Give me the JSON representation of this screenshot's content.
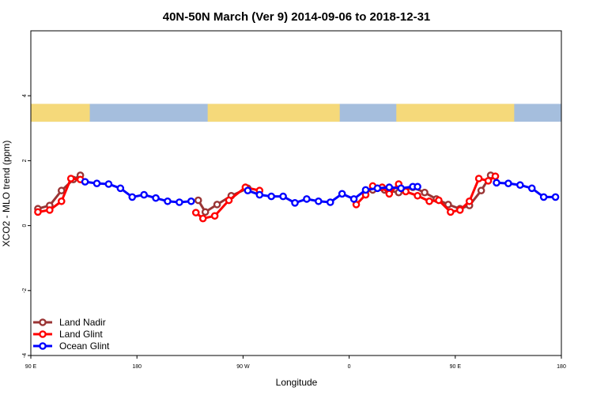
{
  "chart_data": {
    "type": "line",
    "title": "40N-50N March (Ver 9)   2014-09-06 to 2018-12-31",
    "xlabel": "Longitude",
    "ylabel": "XCO2 - MLO trend (ppm)",
    "xlim": [
      90,
      540
    ],
    "ylim": [
      -4,
      6
    ],
    "x_ticks": [
      {
        "value": 90,
        "label": "90 E"
      },
      {
        "value": 180,
        "label": "180"
      },
      {
        "value": 270,
        "label": "90 W"
      },
      {
        "value": 360,
        "label": "0"
      },
      {
        "value": 450,
        "label": "90 E"
      },
      {
        "value": 540,
        "label": "180"
      }
    ],
    "y_ticks": [
      {
        "value": -4,
        "label": "-4"
      },
      {
        "value": -2,
        "label": "-2"
      },
      {
        "value": 0,
        "label": "0"
      },
      {
        "value": 2,
        "label": "2"
      },
      {
        "value": 4,
        "label": "4"
      }
    ],
    "legend_position": "bottom-left",
    "map_strip": {
      "y_range": [
        3.2,
        3.75
      ],
      "ocean_color": "#a5bedd",
      "land_color": "#f5d97a",
      "land_segments": [
        [
          90,
          140
        ],
        [
          240,
          352
        ],
        [
          400,
          500
        ]
      ]
    },
    "series": [
      {
        "name": "Land Nadir",
        "color": "#9a3535",
        "x": [
          96,
          106,
          116,
          126,
          132,
          232,
          238,
          248,
          260,
          274,
          380,
          390,
          402,
          414,
          424,
          434,
          444,
          454,
          462,
          472,
          480
        ],
        "y": [
          0.52,
          0.62,
          1.08,
          1.42,
          1.55,
          0.78,
          0.42,
          0.65,
          0.92,
          1.15,
          1.1,
          1.1,
          1.02,
          1.18,
          1.02,
          0.82,
          0.65,
          0.52,
          0.62,
          1.08,
          1.55
        ]
      },
      {
        "name": "Land Glint",
        "color": "#ff0000",
        "x": [
          96,
          106,
          116,
          124,
          132,
          230,
          236,
          246,
          258,
          272,
          284,
          366,
          374,
          380,
          388,
          394,
          402,
          408,
          418,
          428,
          436,
          446,
          454,
          462,
          470,
          478,
          484
        ],
        "y": [
          0.42,
          0.48,
          0.75,
          1.45,
          1.42,
          0.4,
          0.22,
          0.3,
          0.78,
          1.18,
          1.08,
          0.65,
          0.95,
          1.22,
          1.18,
          0.98,
          1.28,
          1.05,
          0.92,
          0.75,
          0.78,
          0.42,
          0.48,
          0.75,
          1.45,
          1.38,
          1.52
        ]
      },
      {
        "name": "Ocean Glint",
        "color": "#0000ff",
        "x": [
          136,
          146,
          156,
          166,
          176,
          186,
          196,
          206,
          216,
          226,
          274,
          284,
          294,
          304,
          314,
          324,
          334,
          344,
          354,
          364,
          374,
          384,
          394,
          404,
          414,
          418,
          485,
          495,
          505,
          515,
          525,
          535
        ],
        "y": [
          1.35,
          1.3,
          1.28,
          1.15,
          0.88,
          0.95,
          0.85,
          0.75,
          0.72,
          0.75,
          1.08,
          0.95,
          0.9,
          0.9,
          0.7,
          0.82,
          0.75,
          0.72,
          0.98,
          0.82,
          1.1,
          1.15,
          1.18,
          1.15,
          1.2,
          1.2,
          1.32,
          1.3,
          1.25,
          1.15,
          0.88,
          0.88
        ]
      }
    ]
  }
}
